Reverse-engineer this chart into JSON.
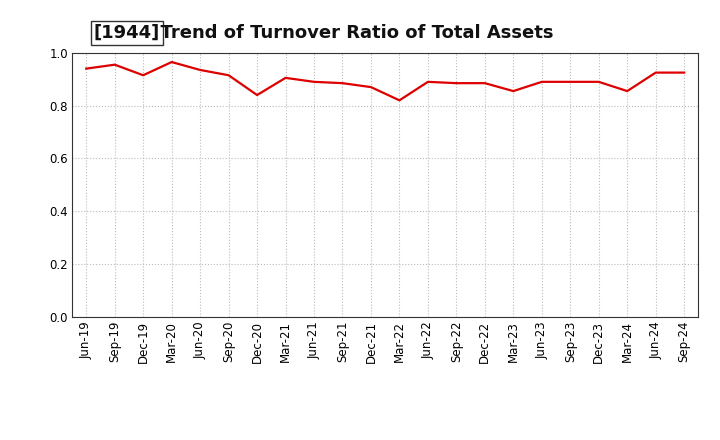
{
  "title_bracket": "[1944]",
  "title_rest": "  Trend of Turnover Ratio of Total Assets",
  "x_labels": [
    "Jun-19",
    "Sep-19",
    "Dec-19",
    "Mar-20",
    "Jun-20",
    "Sep-20",
    "Dec-20",
    "Mar-21",
    "Jun-21",
    "Sep-21",
    "Dec-21",
    "Mar-22",
    "Jun-22",
    "Sep-22",
    "Dec-22",
    "Mar-23",
    "Jun-23",
    "Sep-23",
    "Dec-23",
    "Mar-24",
    "Jun-24",
    "Sep-24"
  ],
  "values": [
    0.94,
    0.955,
    0.915,
    0.965,
    0.935,
    0.915,
    0.84,
    0.905,
    0.89,
    0.885,
    0.87,
    0.82,
    0.89,
    0.885,
    0.885,
    0.855,
    0.89,
    0.89,
    0.89,
    0.855,
    0.925,
    0.925
  ],
  "line_color": "#dd0000",
  "line_width": 1.6,
  "ylim": [
    0.0,
    1.0
  ],
  "yticks": [
    0.0,
    0.2,
    0.4,
    0.6,
    0.8,
    1.0
  ],
  "background_color": "#ffffff",
  "grid_color": "#bbbbbb",
  "title_fontsize": 13,
  "tick_fontsize": 8.5,
  "title_color": "#111111",
  "bracket_box_color": "#ffffff",
  "bracket_box_edge": "#333333"
}
